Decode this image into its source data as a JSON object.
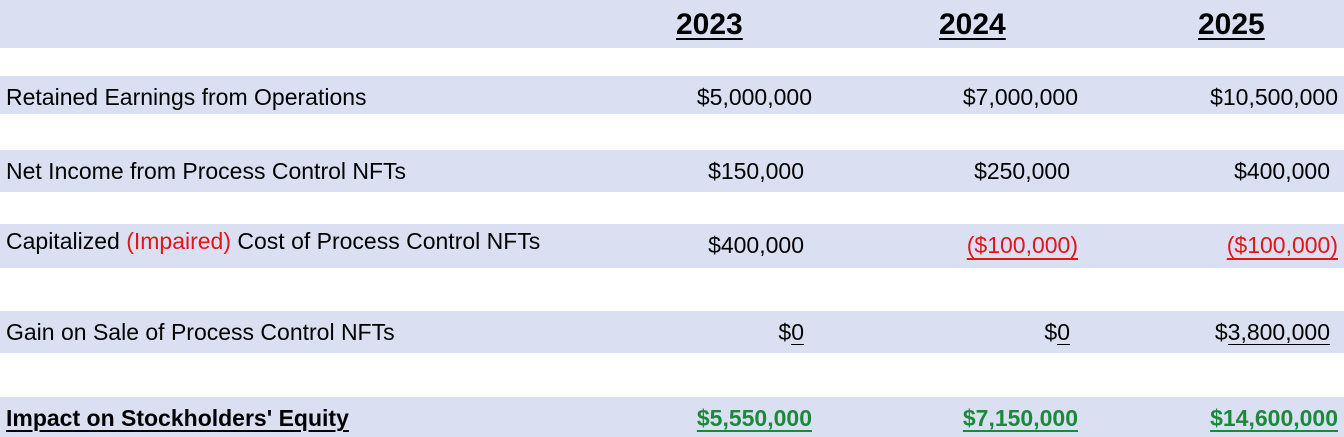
{
  "header": {
    "years": [
      "2023",
      "2024",
      "2025"
    ]
  },
  "rows": [
    {
      "label": "Retained Earnings from Operations",
      "values": [
        "$5,000,000",
        "$7,000,000",
        "$10,500,000"
      ]
    },
    {
      "label": "Net Income from Process Control NFTs",
      "values": [
        "$150,000",
        "$250,000",
        "$400,000"
      ]
    },
    {
      "label_prefix": "Capitalized ",
      "label_highlight": "(Impaired)",
      "label_suffix": " Cost of Process Control NFTs",
      "values": [
        "$400,000",
        "($100,000)",
        "($100,000)"
      ]
    },
    {
      "label": "Gain on Sale of Process Control NFTs",
      "values": [
        "$0",
        "$0",
        "$3,800,000"
      ],
      "value_parts": [
        {
          "pre": "$",
          "under": "0"
        },
        {
          "pre": "$",
          "under": "0"
        },
        {
          "pre": "$",
          "under": "3,800,000"
        }
      ]
    }
  ],
  "total": {
    "label": "Impact on Stockholders' Equity",
    "values": [
      "$5,550,000",
      "$7,150,000",
      "$14,600,000"
    ]
  },
  "colors": {
    "band": "#dae0f2",
    "negative": "#e0161b",
    "total": "#1a8a3a"
  }
}
